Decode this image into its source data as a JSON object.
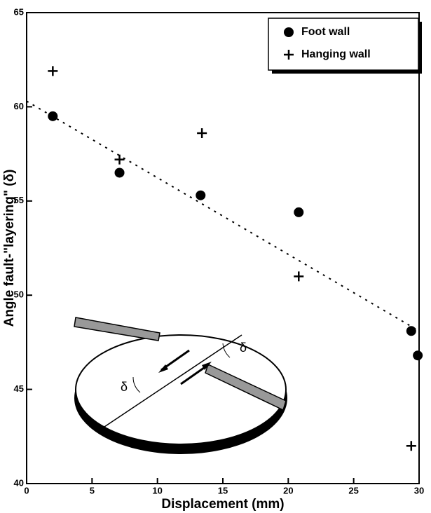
{
  "chart_data": {
    "type": "scatter",
    "xlabel": "Displacement (mm)",
    "ylabel": "Angle fault-\"layering\" (δ)",
    "xlim": [
      0,
      30
    ],
    "xticks": [
      0,
      5,
      10,
      15,
      20,
      25,
      30
    ],
    "ylim": [
      40,
      65
    ],
    "yticks": [
      40,
      45,
      50,
      55,
      60,
      65
    ],
    "legend": "top-right",
    "series": [
      {
        "name": "Foot wall",
        "color": "#000000",
        "marker": "circle",
        "x": [
          2,
          7.1,
          13.3,
          20.8,
          29.4,
          29.9
        ],
        "values": [
          59.5,
          56.5,
          55.3,
          54.4,
          48.1,
          46.8
        ]
      },
      {
        "name": "Hanging wall",
        "color": "#000000",
        "marker": "plus",
        "x": [
          2,
          7.1,
          13.4,
          20.8,
          29.4
        ],
        "values": [
          61.9,
          57.2,
          58.6,
          51.0,
          42.0
        ]
      }
    ],
    "trend_line": {
      "x": [
        0,
        30
      ],
      "values": [
        60.3,
        48.1
      ]
    },
    "annotations": [
      "δ",
      "δ"
    ]
  }
}
